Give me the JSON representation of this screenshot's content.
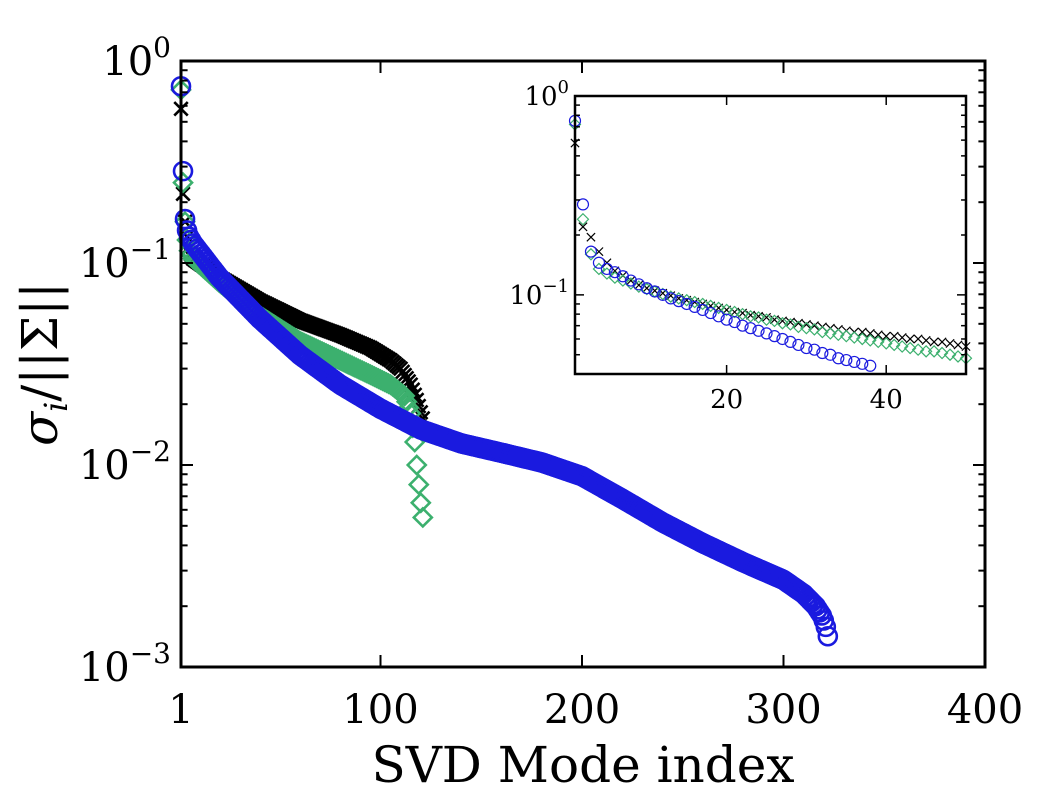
{
  "chart_data": [
    {
      "type": "scatter",
      "role": "main",
      "xlabel": "SVD Mode index",
      "ylabel": "σi/||Σ||",
      "ylabel_base": "σ",
      "ylabel_sub": "i",
      "ylabel_rest": "/||Σ||",
      "xlim": [
        1,
        400
      ],
      "ylim": [
        0.001,
        1
      ],
      "yscale": "log",
      "xticks": [
        1,
        100,
        200,
        300,
        400
      ],
      "yticks": [
        {
          "value": 1,
          "base": "10",
          "exp": "0"
        },
        {
          "value": 0.1,
          "base": "10",
          "exp": "−1"
        },
        {
          "value": 0.01,
          "base": "10",
          "exp": "−2"
        },
        {
          "value": 0.001,
          "base": "10",
          "exp": "−3"
        }
      ],
      "series": [
        {
          "name": "black",
          "marker": "x",
          "color": "#000000",
          "n": 122,
          "first": [
            0.58,
            0.22,
            0.16,
            0.135,
            0.12,
            0.11
          ],
          "curve": [
            [
              7,
              0.105
            ],
            [
              20,
              0.085
            ],
            [
              40,
              0.065
            ],
            [
              60,
              0.052
            ],
            [
              80,
              0.044
            ],
            [
              95,
              0.038
            ],
            [
              105,
              0.033
            ],
            [
              110,
              0.03
            ],
            [
              115,
              0.025
            ],
            [
              118,
              0.021
            ],
            [
              121,
              0.017
            ],
            [
              122,
              0.015
            ]
          ]
        },
        {
          "name": "green",
          "marker": "diamond",
          "color": "#3cb06e",
          "n": 121,
          "first": [
            0.72,
            0.25,
            0.16,
            0.13,
            0.115,
            0.11
          ],
          "curve": [
            [
              7,
              0.105
            ],
            [
              20,
              0.08
            ],
            [
              40,
              0.055
            ],
            [
              60,
              0.041
            ],
            [
              80,
              0.033
            ],
            [
              95,
              0.028
            ],
            [
              105,
              0.025
            ],
            [
              112,
              0.022
            ],
            [
              115,
              0.018
            ],
            [
              117,
              0.013
            ],
            [
              118,
              0.01
            ],
            [
              119,
              0.008
            ],
            [
              120,
              0.0065
            ],
            [
              121,
              0.0055
            ]
          ]
        },
        {
          "name": "blue",
          "marker": "circle",
          "color": "#1a1adf",
          "n": 322,
          "first": [
            0.75,
            0.285,
            0.165,
            0.145,
            0.135,
            0.13
          ],
          "curve": [
            [
              7,
              0.125
            ],
            [
              20,
              0.085
            ],
            [
              40,
              0.053
            ],
            [
              60,
              0.035
            ],
            [
              80,
              0.025
            ],
            [
              100,
              0.019
            ],
            [
              120,
              0.015
            ],
            [
              140,
              0.0128
            ],
            [
              160,
              0.0115
            ],
            [
              180,
              0.0103
            ],
            [
              200,
              0.0088
            ],
            [
              220,
              0.0068
            ],
            [
              240,
              0.0052
            ],
            [
              260,
              0.0041
            ],
            [
              280,
              0.0033
            ],
            [
              300,
              0.0027
            ],
            [
              310,
              0.0023
            ],
            [
              316,
              0.002
            ],
            [
              319,
              0.0018
            ],
            [
              320,
              0.0017
            ],
            [
              321,
              0.00158
            ],
            [
              322,
              0.00142
            ]
          ]
        }
      ]
    },
    {
      "type": "scatter",
      "role": "inset",
      "xlim": [
        1,
        50
      ],
      "ylim": [
        0.04,
        1
      ],
      "yscale": "log",
      "xticks": [
        20,
        40
      ],
      "yticks": [
        {
          "value": 1,
          "base": "10",
          "exp": "0"
        },
        {
          "value": 0.1,
          "base": "10",
          "exp": "−1"
        }
      ],
      "series": [
        {
          "name": "black",
          "marker": "x",
          "color": "#000000",
          "x": [
            1,
            2,
            3,
            4,
            5,
            6,
            7,
            8,
            9,
            10,
            11,
            12,
            13,
            14,
            15,
            16,
            17,
            18,
            19,
            20,
            21,
            22,
            23,
            24,
            25,
            26,
            27,
            28,
            29,
            30,
            31,
            32,
            33,
            34,
            35,
            36,
            37,
            38,
            39,
            40,
            41,
            42,
            43,
            44,
            45,
            46,
            47,
            48,
            49,
            50
          ],
          "y": [
            0.58,
            0.22,
            0.195,
            0.165,
            0.145,
            0.132,
            0.125,
            0.118,
            0.112,
            0.108,
            0.105,
            0.102,
            0.099,
            0.096,
            0.094,
            0.092,
            0.09,
            0.088,
            0.086,
            0.084,
            0.082,
            0.081,
            0.079,
            0.078,
            0.077,
            0.075,
            0.074,
            0.073,
            0.072,
            0.071,
            0.07,
            0.069,
            0.068,
            0.067,
            0.066,
            0.065,
            0.065,
            0.064,
            0.063,
            0.062,
            0.062,
            0.061,
            0.06,
            0.06,
            0.059,
            0.058,
            0.058,
            0.057,
            0.056,
            0.055
          ]
        },
        {
          "name": "green",
          "marker": "diamond",
          "color": "#3cb06e",
          "x": [
            1,
            2,
            3,
            4,
            5,
            6,
            7,
            8,
            9,
            10,
            11,
            12,
            13,
            14,
            15,
            16,
            17,
            18,
            19,
            20,
            21,
            22,
            23,
            24,
            25,
            26,
            27,
            28,
            29,
            30,
            31,
            32,
            33,
            34,
            35,
            36,
            37,
            38,
            39,
            40,
            41,
            42,
            43,
            44,
            45,
            46,
            47,
            48,
            49,
            50
          ],
          "y": [
            0.72,
            0.24,
            0.16,
            0.135,
            0.128,
            0.122,
            0.118,
            0.114,
            0.11,
            0.107,
            0.104,
            0.101,
            0.098,
            0.096,
            0.094,
            0.092,
            0.09,
            0.088,
            0.086,
            0.084,
            0.082,
            0.08,
            0.078,
            0.077,
            0.075,
            0.074,
            0.072,
            0.071,
            0.069,
            0.068,
            0.067,
            0.065,
            0.064,
            0.063,
            0.062,
            0.061,
            0.06,
            0.059,
            0.058,
            0.057,
            0.056,
            0.055,
            0.054,
            0.053,
            0.052,
            0.052,
            0.051,
            0.05,
            0.049,
            0.048
          ]
        },
        {
          "name": "blue",
          "marker": "circle",
          "color": "#1a1adf",
          "x": [
            1,
            2,
            3,
            4,
            5,
            6,
            7,
            8,
            9,
            10,
            11,
            12,
            13,
            14,
            15,
            16,
            17,
            18,
            19,
            20,
            21,
            22,
            23,
            24,
            25,
            26,
            27,
            28,
            29,
            30,
            31,
            32,
            33,
            34,
            35,
            36,
            37,
            38
          ],
          "y": [
            0.75,
            0.285,
            0.165,
            0.145,
            0.135,
            0.13,
            0.124,
            0.118,
            0.113,
            0.108,
            0.104,
            0.1,
            0.096,
            0.093,
            0.09,
            0.087,
            0.084,
            0.081,
            0.078,
            0.075,
            0.073,
            0.07,
            0.068,
            0.066,
            0.064,
            0.062,
            0.06,
            0.058,
            0.056,
            0.054,
            0.053,
            0.051,
            0.05,
            0.048,
            0.047,
            0.046,
            0.045,
            0.044
          ]
        }
      ]
    }
  ]
}
